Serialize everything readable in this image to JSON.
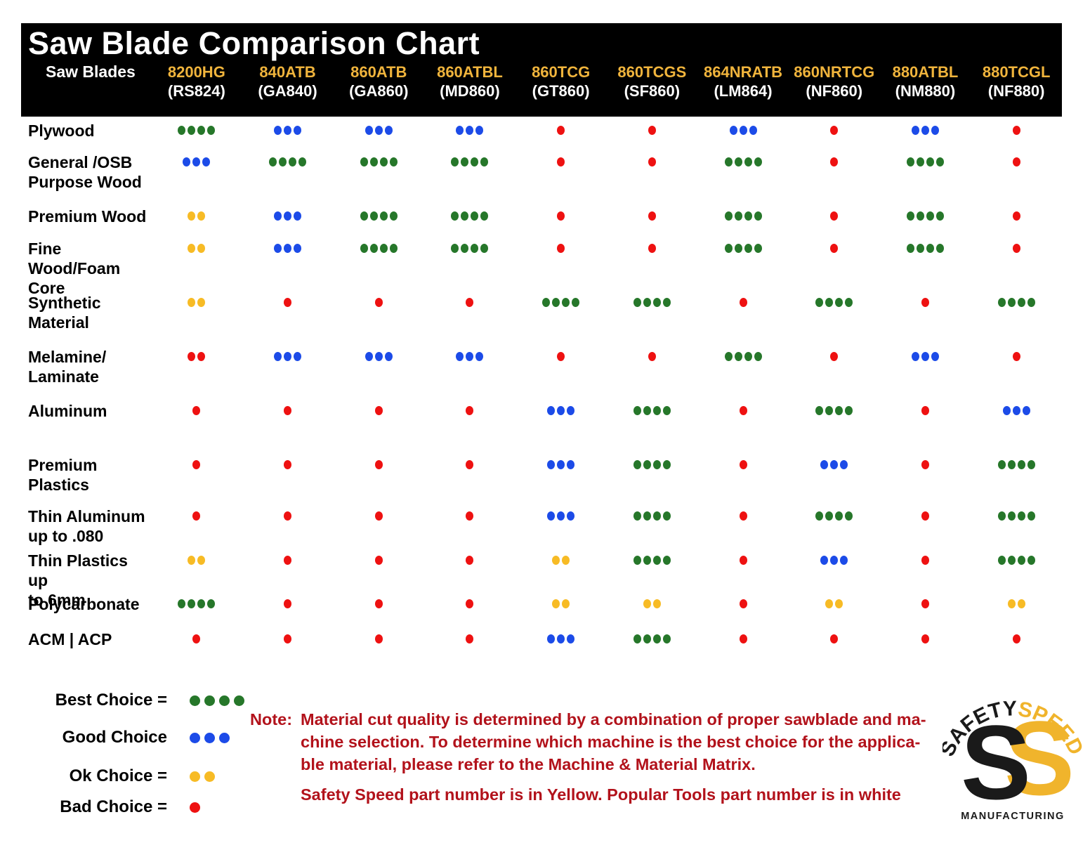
{
  "header": {
    "bg": "#000000",
    "title_color": "#ffffff",
    "pn_yellow": "#f0b43c"
  },
  "chart_data": {
    "type": "table",
    "title": "Saw Blade Comparison Chart",
    "corner_label": "Saw Blades",
    "columns": [
      {
        "safety_speed_pn": "8200HG",
        "popular_tools_pn": "(RS824)"
      },
      {
        "safety_speed_pn": "840ATB",
        "popular_tools_pn": "(GA840)"
      },
      {
        "safety_speed_pn": "860ATB",
        "popular_tools_pn": "(GA860)"
      },
      {
        "safety_speed_pn": "860ATBL",
        "popular_tools_pn": "(MD860)"
      },
      {
        "safety_speed_pn": "860TCG",
        "popular_tools_pn": "(GT860)"
      },
      {
        "safety_speed_pn": "860TCGS",
        "popular_tools_pn": "(SF860)"
      },
      {
        "safety_speed_pn": "864NRATB",
        "popular_tools_pn": "(LM864)"
      },
      {
        "safety_speed_pn": "860NRTCG",
        "popular_tools_pn": "(NF860)"
      },
      {
        "safety_speed_pn": "880ATBL",
        "popular_tools_pn": "(NM880)"
      },
      {
        "safety_speed_pn": "880TCGL",
        "popular_tools_pn": "(NF880)"
      }
    ],
    "rating_styles": {
      "best": {
        "count": 4,
        "color": "green",
        "meaning": "Best Choice"
      },
      "good": {
        "count": 3,
        "color": "blue",
        "meaning": "Good Choice"
      },
      "ok": {
        "count": 2,
        "color": "yellow",
        "meaning": "Ok Choice"
      },
      "bad": {
        "count": 1,
        "color": "red",
        "meaning": "Bad Choice"
      },
      "bad-2": {
        "count": 2,
        "color": "red",
        "meaning": "Bad Choice"
      }
    },
    "dot_colors": {
      "green": "#26772a",
      "blue": "#1c4be8",
      "yellow": "#f7bb25",
      "red": "#ee1111"
    },
    "rows": [
      {
        "material": "Plywood",
        "ratings": [
          "best",
          "good",
          "good",
          "good",
          "bad",
          "bad",
          "good",
          "bad",
          "good",
          "bad"
        ]
      },
      {
        "material": "General /OSB\nPurpose Wood",
        "ratings": [
          "good",
          "best",
          "best",
          "best",
          "bad",
          "bad",
          "best",
          "bad",
          "best",
          "bad"
        ]
      },
      {
        "material": "Premium Wood",
        "ratings": [
          "ok",
          "good",
          "best",
          "best",
          "bad",
          "bad",
          "best",
          "bad",
          "best",
          "bad"
        ]
      },
      {
        "material": "Fine Wood/Foam\nCore",
        "ratings": [
          "ok",
          "good",
          "best",
          "best",
          "bad",
          "bad",
          "best",
          "bad",
          "best",
          "bad"
        ]
      },
      {
        "material": "Synthetic\nMaterial",
        "ratings": [
          "ok",
          "bad",
          "bad",
          "bad",
          "best",
          "best",
          "bad",
          "best",
          "bad",
          "best"
        ]
      },
      {
        "material": "Melamine/\nLaminate",
        "ratings": [
          "bad-2",
          "good",
          "good",
          "good",
          "bad",
          "bad",
          "best",
          "bad",
          "good",
          "bad"
        ]
      },
      {
        "material": "Aluminum",
        "ratings": [
          "bad",
          "bad",
          "bad",
          "bad",
          "good",
          "best",
          "bad",
          "best",
          "bad",
          "good"
        ]
      },
      {
        "material": "Premium\nPlastics",
        "ratings": [
          "bad",
          "bad",
          "bad",
          "bad",
          "good",
          "best",
          "bad",
          "good",
          "bad",
          "best"
        ]
      },
      {
        "material": "Thin Aluminum\nup to .080",
        "ratings": [
          "bad",
          "bad",
          "bad",
          "bad",
          "good",
          "best",
          "bad",
          "best",
          "bad",
          "best"
        ]
      },
      {
        "material": "Thin Plastics up\nto 6mm",
        "ratings": [
          "ok",
          "bad",
          "bad",
          "bad",
          "ok",
          "best",
          "bad",
          "good",
          "bad",
          "best"
        ]
      },
      {
        "material": "Polycarbonate",
        "ratings": [
          "best",
          "bad",
          "bad",
          "bad",
          "ok",
          "ok",
          "bad",
          "ok",
          "bad",
          "ok"
        ]
      },
      {
        "material": "ACM | ACP",
        "ratings": [
          "bad",
          "bad",
          "bad",
          "bad",
          "good",
          "best",
          "bad",
          "bad",
          "bad",
          "bad"
        ]
      }
    ],
    "legend": [
      {
        "label": "Best Choice =",
        "rating": "best"
      },
      {
        "label": "Good Choice",
        "rating": "good"
      },
      {
        "label": "Ok Choice =",
        "rating": "ok"
      },
      {
        "label": "Bad Choice =",
        "rating": "bad"
      }
    ]
  },
  "notes": {
    "prefix": "Note:",
    "lines": [
      "Material cut quality is determined by a combination of proper sawblade and ma-",
      "chine selection. To determine which machine is the best choice for the applica-",
      "ble material, please refer to the Machine & Material Matrix."
    ],
    "line2": "Safety Speed part number is in Yellow. Popular Tools part number is in white",
    "text_color": "#b2121b"
  },
  "logo": {
    "arc_black": "SAFETY",
    "arc_yellow": "SPEED",
    "monogram_black": "S",
    "monogram_yellow": "S",
    "bottom_text": "MANUFACTURING",
    "yellow": "#f0b42c",
    "black": "#1a1a1a"
  }
}
